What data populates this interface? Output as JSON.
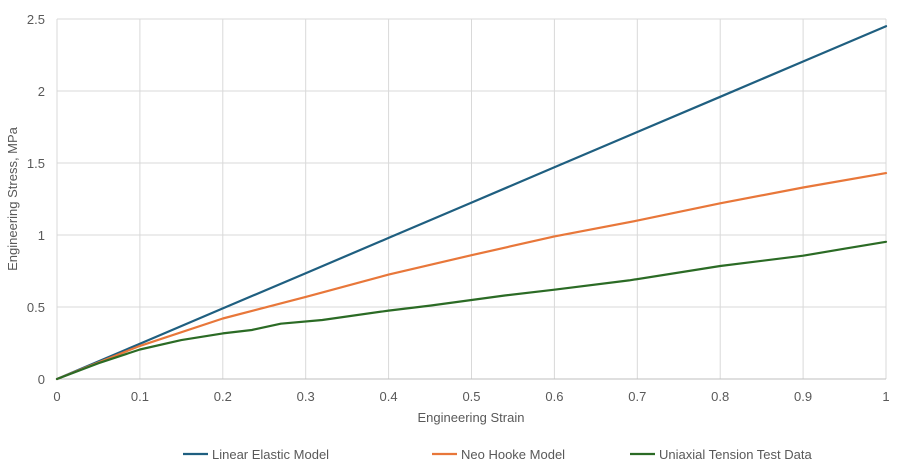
{
  "chart_data": {
    "type": "line",
    "title": "",
    "xlabel": "Engineering Strain",
    "ylabel": "Engineering Stress, MPa",
    "xlim": [
      0,
      1
    ],
    "ylim": [
      0,
      2.5
    ],
    "x_ticks": [
      "0",
      "0.1",
      "0.2",
      "0.3",
      "0.4",
      "0.5",
      "0.6",
      "0.7",
      "0.8",
      "0.9",
      "1"
    ],
    "y_ticks": [
      "0",
      "0.5",
      "1",
      "1.5",
      "2",
      "2.5"
    ],
    "grid": true,
    "legend_position": "bottom",
    "series": [
      {
        "name": "Linear Elastic Model",
        "color": "#1f5f80",
        "x": [
          0,
          0.1,
          0.2,
          0.3,
          0.4,
          0.5,
          0.6,
          0.7,
          0.8,
          0.9,
          1.0
        ],
        "values": [
          0,
          0.245,
          0.49,
          0.735,
          0.98,
          1.225,
          1.47,
          1.715,
          1.96,
          2.205,
          2.45
        ]
      },
      {
        "name": "Neo Hooke Model",
        "color": "#e8773a",
        "x": [
          0,
          0.1,
          0.2,
          0.3,
          0.4,
          0.5,
          0.6,
          0.7,
          0.8,
          0.9,
          1.0
        ],
        "values": [
          0,
          0.23,
          0.42,
          0.57,
          0.725,
          0.86,
          0.99,
          1.1,
          1.22,
          1.33,
          1.43
        ]
      },
      {
        "name": "Uniaxial Tension Test Data",
        "color": "#2b6b25",
        "x": [
          0,
          0.05,
          0.1,
          0.15,
          0.2,
          0.235,
          0.27,
          0.32,
          0.4,
          0.45,
          0.54,
          0.6,
          0.69,
          0.8,
          0.9,
          0.95,
          1.0
        ],
        "values": [
          0,
          0.11,
          0.205,
          0.27,
          0.317,
          0.34,
          0.384,
          0.41,
          0.475,
          0.51,
          0.58,
          0.62,
          0.685,
          0.785,
          0.856,
          0.905,
          0.953
        ]
      }
    ]
  }
}
